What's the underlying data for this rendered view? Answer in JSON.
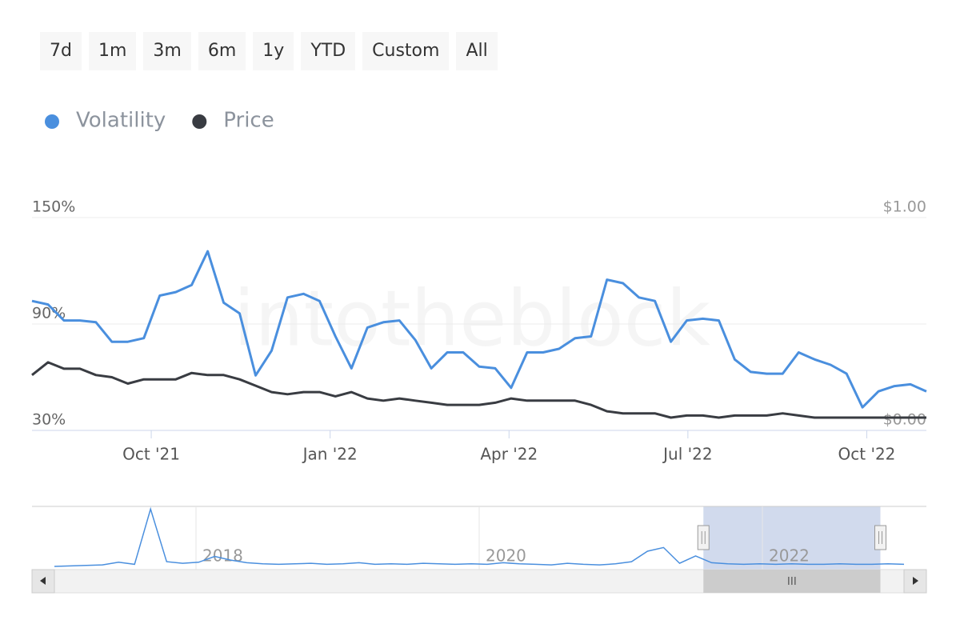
{
  "range_buttons": [
    "7d",
    "1m",
    "3m",
    "6m",
    "1y",
    "YTD",
    "Custom",
    "All"
  ],
  "watermark": "intotheblock",
  "chart_data": [
    {
      "type": "line",
      "xlim": [
        "2021-08",
        "2022-11"
      ],
      "xticks": [
        {
          "value": "2021-10",
          "label": "Oct '21"
        },
        {
          "value": "2022-01",
          "label": "Jan '22"
        },
        {
          "value": "2022-04",
          "label": "Apr '22"
        },
        {
          "value": "2022-07",
          "label": "Jul '22"
        },
        {
          "value": "2022-10",
          "label": "Oct '22"
        }
      ],
      "ylim": [
        30,
        150
      ],
      "yticks": [
        {
          "value": 30,
          "label": "30%"
        },
        {
          "value": 90,
          "label": "90%"
        },
        {
          "value": 150,
          "label": "150%"
        }
      ],
      "y2lim": [
        0,
        1
      ],
      "y2ticks": [
        {
          "value": 0,
          "label": "$0.00"
        },
        {
          "value": 1,
          "label": "$1.00"
        }
      ],
      "grid": true,
      "legend": "top-left",
      "series": [
        {
          "name": "Volatility",
          "color": "#4a8fde",
          "values": [
            103,
            101,
            92,
            92,
            91,
            80,
            80,
            82,
            106,
            108,
            112,
            131,
            102,
            96,
            61,
            75,
            105,
            107,
            103,
            83,
            65,
            88,
            91,
            92,
            81,
            65,
            74,
            74,
            66,
            65,
            54,
            74,
            74,
            76,
            82,
            83,
            115,
            113,
            105,
            103,
            80,
            92,
            93,
            92,
            70,
            63,
            62,
            62,
            74,
            70,
            67,
            62,
            43,
            52,
            55,
            56,
            52
          ]
        },
        {
          "name": "Price",
          "color": "#393c42",
          "axis": "y2",
          "values": [
            0.26,
            0.32,
            0.29,
            0.29,
            0.26,
            0.25,
            0.22,
            0.24,
            0.24,
            0.24,
            0.27,
            0.26,
            0.26,
            0.24,
            0.21,
            0.18,
            0.17,
            0.18,
            0.18,
            0.16,
            0.18,
            0.15,
            0.14,
            0.15,
            0.14,
            0.13,
            0.12,
            0.12,
            0.12,
            0.13,
            0.15,
            0.14,
            0.14,
            0.14,
            0.14,
            0.12,
            0.09,
            0.08,
            0.08,
            0.08,
            0.06,
            0.07,
            0.07,
            0.06,
            0.07,
            0.07,
            0.07,
            0.08,
            0.07,
            0.06,
            0.06,
            0.06,
            0.06,
            0.06,
            0.06,
            0.06,
            0.06
          ]
        }
      ]
    },
    {
      "type": "line",
      "xlim": [
        2017,
        2023
      ],
      "xticks": [
        2018,
        2020,
        2022
      ],
      "ylim": [
        0,
        1200
      ],
      "grid": true,
      "series": [
        {
          "color": "#4a8fde",
          "values": [
            60,
            70,
            80,
            90,
            140,
            100,
            1150,
            150,
            120,
            140,
            250,
            180,
            130,
            110,
            100,
            110,
            120,
            100,
            110,
            130,
            100,
            110,
            100,
            120,
            110,
            100,
            110,
            100,
            130,
            110,
            100,
            90,
            120,
            100,
            90,
            110,
            150,
            350,
            420,
            120,
            260,
            130,
            110,
            100,
            110,
            100,
            110,
            100,
            100,
            110,
            100,
            100,
            110,
            100
          ]
        }
      ]
    }
  ]
}
